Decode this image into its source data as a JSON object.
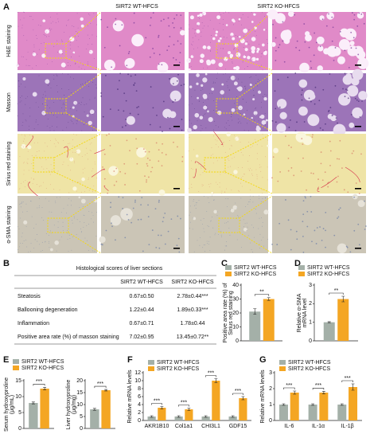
{
  "panel_a": {
    "label": "A",
    "columns": [
      "SIRT2 WT-HFCS",
      "SIRT2 KO-HFCS"
    ],
    "rows": [
      "H&E staining",
      "Masson",
      "Sirius red staining",
      "α-SMA staining"
    ]
  },
  "panel_b": {
    "label": "B",
    "title": "Histological scores of liver sections",
    "header": [
      "SIRT2 WT-HFCS",
      "SIRT2 KO-HFCS"
    ],
    "rows": [
      [
        "Steatosis",
        "0.67±0.50",
        "2.78±0.44***"
      ],
      [
        "Ballooning degeneration",
        "1.22±0.44",
        "1.89±0.33***"
      ],
      [
        "Inflammation",
        "0.67±0.71",
        "1.78±0.44"
      ],
      [
        "Positive area  rate (%) of masson staining",
        "7.02±0.95",
        "13.45±0.72**"
      ]
    ]
  },
  "chart_data": [
    {
      "type": "bar",
      "panel_label": "C",
      "ylabel": [
        "Positive area rate (%) of",
        "Sirius red staining"
      ],
      "categories": [
        null
      ],
      "ylim": [
        0,
        40
      ],
      "yticks": [
        0,
        10,
        20,
        30,
        40
      ],
      "sig": [
        "**"
      ],
      "series": [
        {
          "name": "SIRT2 WT-HFCS",
          "color": "#a4b0a8",
          "values": [
            21
          ],
          "errors": [
            2
          ]
        },
        {
          "name": "SIRT2 KO-HFCS",
          "color": "#f4a623",
          "values": [
            30
          ],
          "errors": [
            1
          ]
        }
      ]
    },
    {
      "type": "bar",
      "panel_label": "D",
      "ylabel": [
        "Relative α-SMA",
        "mRNA level"
      ],
      "categories": [
        null
      ],
      "ylim": [
        0,
        3
      ],
      "yticks": [
        0,
        1,
        2,
        3
      ],
      "sig": [
        "**"
      ],
      "series": [
        {
          "name": "SIRT2 WT-HFCS",
          "color": "#a4b0a8",
          "values": [
            1
          ],
          "errors": [
            0.03
          ]
        },
        {
          "name": "SIRT2 KO-HFCS",
          "color": "#f4a623",
          "values": [
            2.25
          ],
          "errors": [
            0.15
          ]
        }
      ]
    },
    {
      "type": "bar",
      "panel_label": "E",
      "ylabel": [
        "Serum hydroxyproline",
        "(μg/mL)"
      ],
      "categories": [
        null
      ],
      "ylim": [
        0,
        15
      ],
      "yticks": [
        0,
        5,
        10,
        15
      ],
      "sig": [
        "***"
      ],
      "series": [
        {
          "name": "SIRT2 WT-HFCS",
          "color": "#a4b0a8",
          "values": [
            8
          ],
          "errors": [
            0.3
          ]
        },
        {
          "name": "SIRT2 KO-HFCS",
          "color": "#f4a623",
          "values": [
            12.5
          ],
          "errors": [
            0.4
          ]
        }
      ]
    },
    {
      "type": "bar",
      "ylabel": [
        "Liver hydroxyproline",
        "(μg/mg)"
      ],
      "categories": [
        null
      ],
      "ylim": [
        0,
        20
      ],
      "yticks": [
        0,
        5,
        10,
        15,
        20
      ],
      "sig": [
        "***"
      ],
      "series": [
        {
          "color": "#a4b0a8",
          "values": [
            8
          ],
          "errors": [
            0.4
          ]
        },
        {
          "color": "#f4a623",
          "values": [
            16
          ],
          "errors": [
            0.3
          ]
        }
      ]
    },
    {
      "type": "bar",
      "panel_label": "F",
      "ylabel": [
        "Relative mRNA levels"
      ],
      "categories": [
        "AKR1B10",
        "Col1a1",
        "CHI3L1",
        "GDF15"
      ],
      "ylim": [
        0,
        12
      ],
      "yticks": [
        0,
        2,
        4,
        6,
        8,
        10,
        12
      ],
      "sig": [
        "***",
        "***",
        "***",
        "***"
      ],
      "series": [
        {
          "name": "SIRT2 WT-HFCS",
          "color": "#a4b0a8",
          "values": [
            1,
            1,
            1,
            1
          ],
          "errors": [
            0.2,
            0.2,
            0.2,
            0.2
          ]
        },
        {
          "name": "SIRT2 KO-HFCS",
          "color": "#f4a623",
          "values": [
            3.2,
            2.8,
            10,
            5.6
          ],
          "errors": [
            0.3,
            0.3,
            0.5,
            0.4
          ]
        }
      ]
    },
    {
      "type": "bar",
      "panel_label": "G",
      "ylabel": [
        "Relative mRNA levels"
      ],
      "categories": [
        "IL-6",
        "IL-1α",
        "IL-1β"
      ],
      "ylim": [
        0,
        3
      ],
      "yticks": [
        0,
        1,
        2,
        3
      ],
      "sig": [
        "***",
        "***",
        "***"
      ],
      "series": [
        {
          "name": "SIRT2 WT-HFCS",
          "color": "#a4b0a8",
          "values": [
            1,
            1,
            1
          ],
          "errors": [
            0.05,
            0.05,
            0.05
          ]
        },
        {
          "name": "SIRT2 KO-HFCS",
          "color": "#f4a623",
          "values": [
            1.75,
            1.75,
            2.1
          ],
          "errors": [
            0.1,
            0.08,
            0.2
          ]
        }
      ]
    }
  ]
}
